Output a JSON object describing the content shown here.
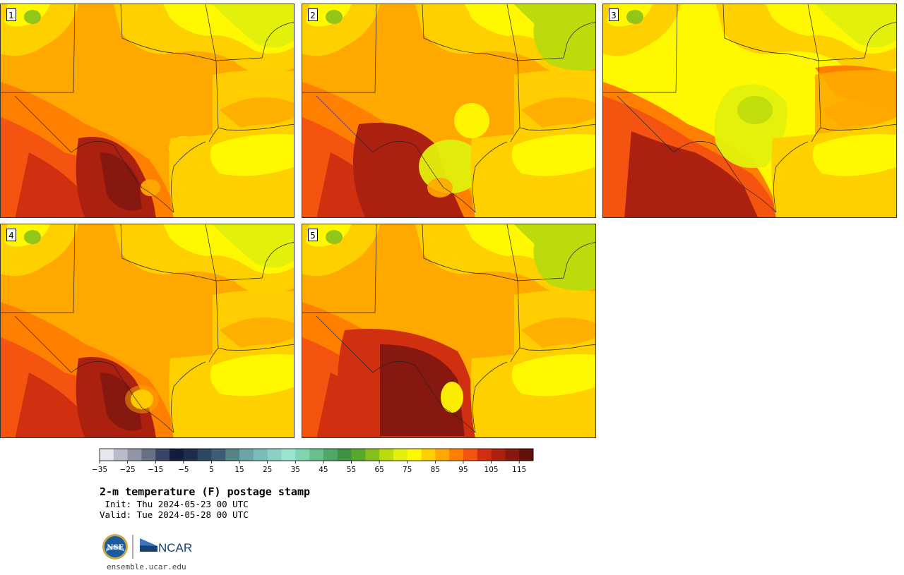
{
  "panels": [
    {
      "label": "1",
      "variant": 1
    },
    {
      "label": "2",
      "variant": 2
    },
    {
      "label": "3",
      "variant": 3
    },
    {
      "label": "4",
      "variant": 4
    },
    {
      "label": "5",
      "variant": 5
    }
  ],
  "colorbar": {
    "colors": [
      "#e5e8ee",
      "#b9bcc8",
      "#9096a6",
      "#687086",
      "#3a4468",
      "#141c3c",
      "#1e2c4e",
      "#2c4664",
      "#3c5e74",
      "#548486",
      "#6ca4a8",
      "#7cbcb8",
      "#8cd0c4",
      "#98e4d0",
      "#80d4b0",
      "#68c08c",
      "#50a866",
      "#3e9444",
      "#5aa82a",
      "#86c01c",
      "#bcda0c",
      "#e2f00c",
      "#fff800",
      "#ffd000",
      "#ffa800",
      "#ff8000",
      "#f45410",
      "#d03010",
      "#ac2010",
      "#861810",
      "#601208"
    ],
    "ticks": [
      "-35",
      "-25",
      "-15",
      "-5",
      "5",
      "15",
      "25",
      "35",
      "45",
      "55",
      "65",
      "75",
      "85",
      "95",
      "105",
      "115"
    ]
  },
  "title": "2-m temperature (F) postage stamp",
  "init": " Init: Thu 2024-05-23 00 UTC",
  "valid": "Valid: Tue 2024-05-28 00 UTC",
  "logos": {
    "nsf": "NSF",
    "ncar": "NCAR"
  },
  "url": "ensemble.ucar.edu"
}
